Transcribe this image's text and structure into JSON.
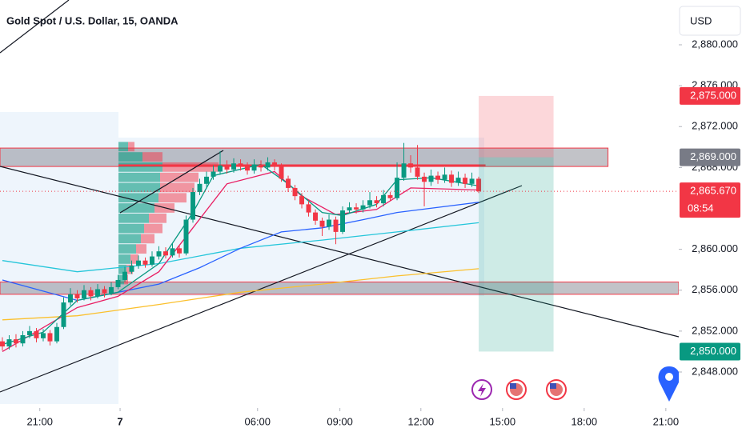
{
  "chart_data": {
    "type": "candlestick",
    "title": "Gold Spot / U.S. Dollar, 15, OANDA",
    "currency": "USD",
    "up_color": "#089981",
    "down_color": "#f23645",
    "xlim": [
      -0.35,
      99.4
    ],
    "ylim": [
      2844.48,
      2884.38
    ],
    "xticks": [
      {
        "value": 5.5,
        "label": "21:00"
      },
      {
        "value": 17.3,
        "label": "7"
      },
      {
        "value": 37.5,
        "label": "06:00"
      },
      {
        "value": 49.6,
        "label": "09:00"
      },
      {
        "value": 61.5,
        "label": "12:00"
      },
      {
        "value": 73.5,
        "label": "15:00"
      },
      {
        "value": 85.5,
        "label": "18:00"
      },
      {
        "value": 97.5,
        "label": "21:00"
      }
    ],
    "yticks": [
      {
        "value": 2848,
        "label": "2,848.000"
      },
      {
        "value": 2852,
        "label": "2,852.000"
      },
      {
        "value": 2856,
        "label": "2,856.000"
      },
      {
        "value": 2860,
        "label": "2,860.000"
      },
      {
        "value": 2868,
        "label": "2,868.000"
      },
      {
        "value": 2872,
        "label": "2,872.000"
      },
      {
        "value": 2876,
        "label": "2,876.000"
      },
      {
        "value": 2880,
        "label": "2,880.000"
      }
    ],
    "candles": {
      "open": [
        2851.0,
        2850.5,
        2851.2,
        2850.8,
        2851.6,
        2852.0,
        2851.3,
        2851.8,
        2851.0,
        2852.4,
        2854.8,
        2855.6,
        2855.2,
        2856.0,
        2855.4,
        2856.1,
        2855.7,
        2856.3,
        2857.0,
        2857.8,
        2858.4,
        2858.9,
        2858.5,
        2859.3,
        2859.8,
        2859.4,
        2860.1,
        2859.6,
        2862.9,
        2865.6,
        2866.4,
        2867.1,
        2867.6,
        2868.2,
        2867.8,
        2868.4,
        2868.1,
        2867.7,
        2868.3,
        2868.0,
        2868.5,
        2868.1,
        2866.9,
        2866.0,
        2865.2,
        2864.4,
        2863.6,
        2862.8,
        2862.2,
        2862.9,
        2861.7,
        2863.8,
        2864.1,
        2863.9,
        2864.3,
        2864.8,
        2864.5,
        2865.3,
        2865.0,
        2867.0,
        2868.4,
        2868.0,
        2867.1,
        2866.6,
        2867.2,
        2866.8,
        2867.3,
        2866.5,
        2867.0,
        2866.4,
        2866.9
      ],
      "high": [
        2851.4,
        2851.6,
        2851.7,
        2852.0,
        2852.5,
        2852.3,
        2852.2,
        2852.1,
        2852.8,
        2855.3,
        2856.2,
        2856.0,
        2856.5,
        2856.3,
        2856.6,
        2856.4,
        2856.8,
        2857.5,
        2858.3,
        2858.9,
        2859.4,
        2859.2,
        2859.8,
        2860.3,
        2860.2,
        2860.6,
        2860.4,
        2863.3,
        2866.0,
        2866.9,
        2867.6,
        2868.2,
        2869.6,
        2868.7,
        2868.9,
        2868.8,
        2868.5,
        2868.8,
        2868.7,
        2869.0,
        2868.8,
        2868.4,
        2867.2,
        2866.3,
        2865.5,
        2864.7,
        2863.9,
        2863.1,
        2863.4,
        2863.2,
        2864.2,
        2864.6,
        2864.5,
        2864.8,
        2865.6,
        2865.2,
        2865.8,
        2865.6,
        2868.5,
        2870.4,
        2869.2,
        2870.2,
        2867.5,
        2867.8,
        2867.6,
        2868.0,
        2867.7,
        2867.6,
        2867.4,
        2867.5,
        2867.1
      ],
      "low": [
        2850.1,
        2850.2,
        2850.4,
        2850.5,
        2851.3,
        2850.9,
        2851.0,
        2850.6,
        2850.8,
        2852.2,
        2854.5,
        2854.8,
        2855.0,
        2855.0,
        2855.2,
        2855.3,
        2855.5,
        2856.1,
        2856.8,
        2857.6,
        2858.1,
        2858.2,
        2858.3,
        2859.0,
        2859.1,
        2859.2,
        2859.2,
        2859.4,
        2862.6,
        2865.3,
        2866.1,
        2866.8,
        2867.3,
        2867.4,
        2867.5,
        2867.7,
        2867.3,
        2867.4,
        2867.6,
        2867.7,
        2867.7,
        2866.6,
        2865.6,
        2864.8,
        2864.0,
        2863.2,
        2862.4,
        2861.3,
        2861.9,
        2860.5,
        2861.5,
        2863.5,
        2863.5,
        2863.6,
        2864.0,
        2864.1,
        2864.2,
        2864.7,
        2864.8,
        2866.7,
        2867.5,
        2866.8,
        2864.2,
        2866.2,
        2866.4,
        2866.5,
        2866.1,
        2866.2,
        2866.0,
        2866.1,
        2865.5
      ],
      "close": [
        2850.5,
        2851.2,
        2850.8,
        2851.6,
        2852.0,
        2851.3,
        2851.8,
        2851.0,
        2852.4,
        2854.8,
        2855.6,
        2855.2,
        2856.0,
        2855.4,
        2856.1,
        2855.7,
        2856.3,
        2857.0,
        2857.8,
        2858.4,
        2858.9,
        2858.5,
        2859.3,
        2859.8,
        2859.4,
        2860.1,
        2859.6,
        2862.9,
        2865.6,
        2866.4,
        2867.1,
        2867.6,
        2868.2,
        2867.8,
        2868.4,
        2868.1,
        2867.7,
        2868.3,
        2868.0,
        2868.5,
        2868.1,
        2866.9,
        2866.0,
        2865.2,
        2864.4,
        2863.6,
        2862.8,
        2862.2,
        2862.9,
        2861.7,
        2863.8,
        2864.1,
        2863.9,
        2864.3,
        2864.8,
        2864.5,
        2865.3,
        2865.0,
        2867.0,
        2868.4,
        2868.0,
        2867.1,
        2866.6,
        2867.2,
        2866.8,
        2867.3,
        2866.5,
        2867.0,
        2866.4,
        2866.9,
        2865.67
      ]
    },
    "indicators": [
      {
        "color": "#26c6da",
        "x": [
          0,
          11,
          23,
          35,
          47,
          58,
          70
        ],
        "values": [
          2858.9,
          2857.8,
          2858.6,
          2860.1,
          2860.9,
          2861.7,
          2862.6
        ]
      },
      {
        "color": "#fbc02d",
        "x": [
          0,
          11,
          23,
          35,
          47,
          58,
          70
        ],
        "values": [
          2853.1,
          2853.5,
          2854.6,
          2855.8,
          2856.6,
          2857.4,
          2858.1
        ]
      },
      {
        "color": "#2962ff",
        "x": [
          0,
          11,
          23,
          29,
          35,
          41,
          47,
          53,
          58,
          70
        ],
        "values": [
          2857.0,
          2855.0,
          2856.6,
          2858.2,
          2860.1,
          2861.7,
          2862.1,
          2862.9,
          2863.6,
          2864.6
        ]
      },
      {
        "color": "#e91e63",
        "x": [
          0,
          11,
          17,
          23,
          28,
          33,
          40,
          44,
          49,
          55,
          60,
          70
        ],
        "values": [
          2850.0,
          2854.3,
          2855.4,
          2857.8,
          2862.1,
          2866.4,
          2867.6,
          2865.2,
          2863.4,
          2863.9,
          2866.0,
          2865.8
        ]
      },
      {
        "color": "#089981",
        "x": [
          0,
          6,
          11,
          17,
          23,
          28,
          31,
          38,
          42,
          47,
          50,
          55,
          58,
          63,
          70
        ],
        "values": [
          2850.7,
          2851.9,
          2855.0,
          2855.8,
          2858.6,
          2863.6,
          2867.2,
          2868.3,
          2866.4,
          2863.6,
          2863.3,
          2864.4,
          2866.8,
          2867.0,
          2866.2
        ]
      }
    ],
    "volume_profile": {
      "prices": [
        2857,
        2858,
        2859,
        2860,
        2861,
        2862,
        2863,
        2864,
        2865,
        2866,
        2867,
        2868,
        2869,
        2870
      ],
      "up": [
        7,
        10,
        15,
        22,
        28,
        32,
        38,
        45,
        50,
        52,
        52,
        55,
        30,
        12
      ],
      "down": [
        5,
        8,
        10,
        13,
        17,
        23,
        22,
        25,
        35,
        43,
        48,
        70,
        25,
        8
      ]
    },
    "poc": 2868.2,
    "zones": [
      {
        "from": 2868.1,
        "to": 2869.9,
        "x_end": 89
      },
      {
        "from": 2855.6,
        "to": 2856.8,
        "x_end": 99.4
      }
    ],
    "position": {
      "entry": 2869,
      "stop": 2875,
      "target": 2850,
      "x": [
        70,
        81
      ]
    },
    "last_price": 2865.67,
    "price_labels": [
      {
        "value": 2875,
        "label": "2,875.000",
        "color": "#f23645"
      },
      {
        "value": 2869,
        "label": "2,869.000",
        "color": "#787b86"
      },
      {
        "value": 2865.67,
        "label": "2,865.670",
        "countdown": "08:54",
        "color": "#f23645"
      },
      {
        "value": 2850,
        "label": "2,850.000",
        "color": "#089981"
      }
    ]
  }
}
